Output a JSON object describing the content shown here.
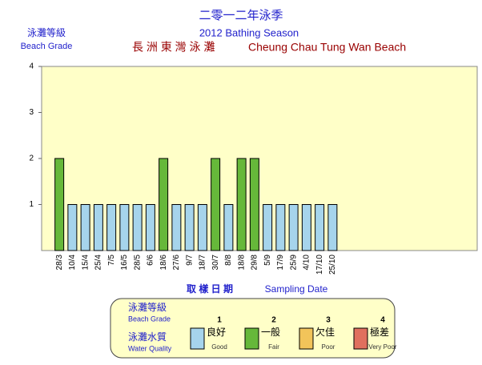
{
  "chart_data": {
    "type": "bar",
    "title": "二零一二年泳季",
    "subtitle": "2012 Bathing Season",
    "beach_zh": "長 洲 東 灣 泳 灘",
    "beach_en": "Cheung Chau Tung Wan Beach",
    "y_label_zh": "泳灘等級",
    "y_label_en": "Beach Grade",
    "x_label_zh": "取 樣 日 期",
    "x_label_en": "Sampling Date",
    "categories": [
      "28/3",
      "10/4",
      "15/4",
      "25/4",
      "7/5",
      "16/5",
      "28/5",
      "6/6",
      "18/6",
      "27/6",
      "9/7",
      "18/7",
      "30/7",
      "8/8",
      "18/8",
      "29/8",
      "5/9",
      "17/9",
      "25/9",
      "4/10",
      "17/10",
      "25/10"
    ],
    "values": [
      2,
      1,
      1,
      1,
      1,
      1,
      1,
      1,
      2,
      1,
      1,
      1,
      2,
      1,
      2,
      2,
      1,
      1,
      1,
      1,
      1,
      1
    ],
    "ylim": [
      0,
      4
    ],
    "yticks": [
      1,
      2,
      3,
      4
    ],
    "background": "#ffffc8",
    "legend": {
      "grade_zh": "泳灘等級",
      "grade_en": "Beach Grade",
      "quality_zh": "泳灘水質",
      "quality_en": "Water Quality",
      "items": [
        {
          "grade": 1,
          "zh": "良好",
          "en": "Good",
          "color": "#a6d4ec"
        },
        {
          "grade": 2,
          "zh": "一般",
          "en": "Fair",
          "color": "#66b83a"
        },
        {
          "grade": 3,
          "zh": "欠佳",
          "en": "Poor",
          "color": "#f2c45a"
        },
        {
          "grade": 4,
          "zh": "極差",
          "en": "Very Poor",
          "color": "#e0705e"
        }
      ]
    }
  }
}
